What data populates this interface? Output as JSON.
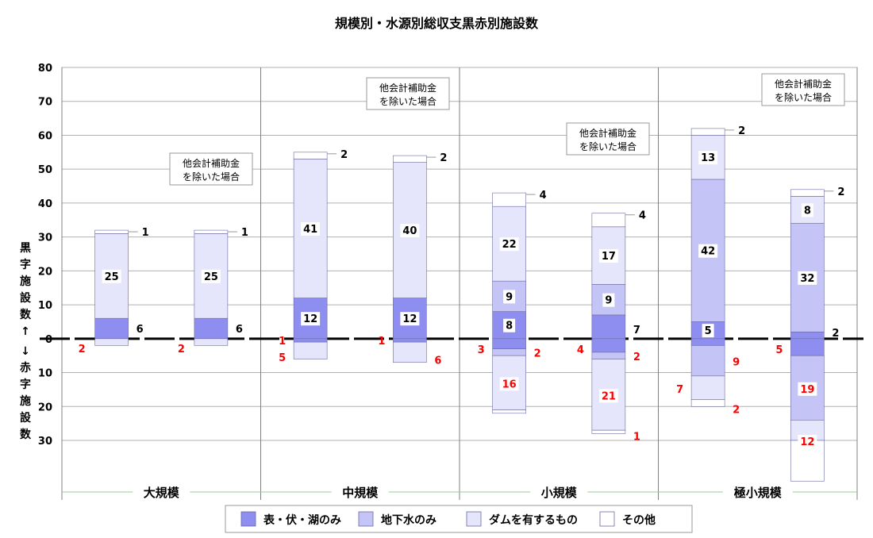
{
  "chart_data": {
    "type": "bar",
    "title": "規模別・水源別総収支黒赤別施設数",
    "ylabel_black": [
      "黒",
      "字",
      "施",
      "設",
      "数",
      "↑"
    ],
    "ylabel_red": [
      "↓",
      "赤",
      "字",
      "施",
      "設",
      "数"
    ],
    "ylim": [
      -30,
      80
    ],
    "yticks": [
      {
        "value": 80,
        "label": "80"
      },
      {
        "value": 70,
        "label": "70"
      },
      {
        "value": 60,
        "label": "60"
      },
      {
        "value": 50,
        "label": "50"
      },
      {
        "value": 40,
        "label": "40"
      },
      {
        "value": 30,
        "label": "30"
      },
      {
        "value": 20,
        "label": "20"
      },
      {
        "value": 10,
        "label": "10"
      },
      {
        "value": 0,
        "label": "0"
      },
      {
        "value": -10,
        "label": "10"
      },
      {
        "value": -20,
        "label": "20"
      },
      {
        "value": -30,
        "label": "30"
      }
    ],
    "groups": [
      "大規模",
      "中規模",
      "小規模",
      "極小規模"
    ],
    "series": [
      {
        "name": "表・伏・湖のみ",
        "color": "#8e8ef0"
      },
      {
        "name": "地下水のみ",
        "color": "#c4c4f6"
      },
      {
        "name": "ダムを有するもの",
        "color": "#e5e5fb"
      },
      {
        "name": "その他",
        "color": "#ffffff"
      }
    ],
    "note_text": [
      "他会計補助金",
      "を除いた場合"
    ],
    "bars": [
      {
        "group": 0,
        "note": false,
        "black": [
          6,
          0,
          25,
          1
        ],
        "red": [
          0,
          0,
          2,
          0
        ],
        "black_labels": [
          "6",
          "",
          "25",
          "1"
        ],
        "red_labels": [
          "",
          "",
          "2",
          ""
        ]
      },
      {
        "group": 0,
        "note": true,
        "black": [
          6,
          0,
          25,
          1
        ],
        "red": [
          0,
          0,
          2,
          0
        ],
        "black_labels": [
          "6",
          "",
          "25",
          "1"
        ],
        "red_labels": [
          "",
          "",
          "2",
          ""
        ]
      },
      {
        "group": 1,
        "note": false,
        "black": [
          12,
          0,
          41,
          2
        ],
        "red": [
          1,
          0,
          5,
          0
        ],
        "black_labels": [
          "12",
          "",
          "41",
          "2"
        ],
        "red_labels": [
          "1",
          "",
          "5",
          ""
        ]
      },
      {
        "group": 1,
        "note": true,
        "black": [
          12,
          0,
          40,
          2
        ],
        "red": [
          1,
          0,
          6,
          0
        ],
        "black_labels": [
          "12",
          "",
          "40",
          "2"
        ],
        "red_labels": [
          "1",
          "",
          "6",
          ""
        ]
      },
      {
        "group": 2,
        "note": false,
        "black": [
          8,
          9,
          22,
          4
        ],
        "red": [
          3,
          2,
          16,
          1
        ],
        "black_labels": [
          "8",
          "9",
          "22",
          "4"
        ],
        "red_labels": [
          "3",
          "2",
          "16",
          ""
        ]
      },
      {
        "group": 2,
        "note": true,
        "black": [
          7,
          9,
          17,
          4
        ],
        "red": [
          4,
          2,
          21,
          1
        ],
        "black_labels": [
          "7",
          "9",
          "17",
          "4"
        ],
        "red_labels": [
          "4",
          "2",
          "21",
          "1"
        ]
      },
      {
        "group": 3,
        "note": false,
        "black": [
          5,
          42,
          13,
          2
        ],
        "red": [
          2,
          9,
          7,
          2
        ],
        "black_labels": [
          "5",
          "42",
          "13",
          "2"
        ],
        "red_labels": [
          "",
          "9",
          "7",
          "2"
        ]
      },
      {
        "group": 3,
        "note": true,
        "black": [
          2,
          32,
          8,
          2
        ],
        "red": [
          5,
          19,
          6,
          12
        ],
        "black_labels": [
          "2",
          "32",
          "8",
          "2"
        ],
        "red_labels": [
          "5",
          "19",
          "",
          "12"
        ]
      }
    ]
  }
}
